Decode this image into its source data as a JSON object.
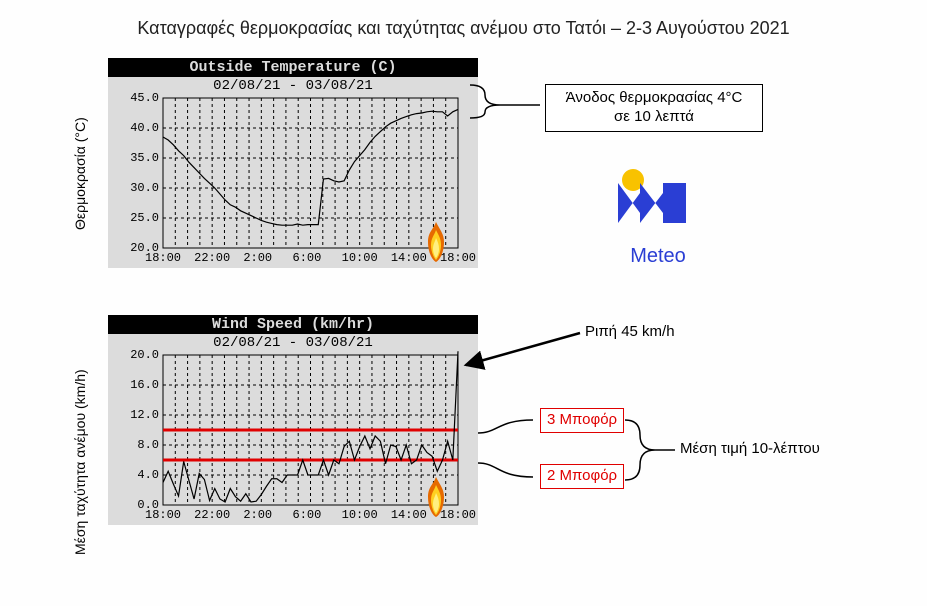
{
  "title": "Καταγραφές θερμοκρασίας και ταχύτητας ανέμου στο Τατόι – 2-3 Αυγούστου 2021",
  "top": {
    "axis_title": "Θερμοκρασία (°C)",
    "header": "Outside Temperature (C)",
    "subheader": "02/08/21 - 03/08/21",
    "panel_bg": "#dcdcdc",
    "header_bg": "#000000",
    "header_fg": "#dcdcdc",
    "grid_dash": "3,3",
    "grid_color": "#000000",
    "line_color": "#000000",
    "x_ticks": [
      "18:00",
      "22:00",
      "2:00",
      "6:00",
      "10:00",
      "14:00",
      "18:00"
    ],
    "y_ticks": [
      "20.0",
      "25.0",
      "30.0",
      "35.0",
      "40.0",
      "45.0"
    ],
    "ylim": [
      20,
      45
    ],
    "series": [
      38.5,
      38.0,
      37.2,
      36.2,
      35.4,
      34.3,
      33.4,
      32.5,
      31.6,
      30.8,
      30.0,
      29.0,
      28.0,
      27.2,
      26.8,
      26.2,
      25.8,
      25.4,
      25.0,
      24.6,
      24.3,
      24.1,
      23.9,
      23.8,
      23.8,
      23.8,
      24.0,
      23.8,
      23.9,
      23.9,
      23.9,
      31.5,
      31.6,
      31.2,
      31.0,
      31.2,
      33.0,
      34.4,
      35.4,
      36.4,
      37.6,
      38.6,
      39.4,
      40.2,
      40.8,
      41.2,
      41.6,
      41.9,
      42.2,
      42.4,
      42.5,
      42.7,
      42.8,
      42.7,
      42.7,
      42.0,
      42.7,
      43.1
    ],
    "annotation": {
      "line1": "Άνοδος θερμοκρασίας 4°C",
      "line2": "σε 10 λεπτά"
    }
  },
  "bottom": {
    "axis_title": "Μέση ταχύτητα ανέμου (km/h)",
    "header": "Wind Speed (km/hr)",
    "subheader": "02/08/21 - 03/08/21",
    "panel_bg": "#dcdcdc",
    "header_bg": "#000000",
    "header_fg": "#dcdcdc",
    "grid_dash": "3,3",
    "grid_color": "#000000",
    "line_color": "#000000",
    "hline_color": "#e00000",
    "hline_width": 3,
    "hline_values": [
      10,
      6
    ],
    "x_ticks": [
      "18:00",
      "22:00",
      "2:00",
      "6:00",
      "10:00",
      "14:00",
      "18:00"
    ],
    "y_ticks": [
      "0.0",
      "4.0",
      "8.0",
      "12.0",
      "16.0",
      "20.0"
    ],
    "ylim": [
      0,
      20
    ],
    "series": [
      3.0,
      4.5,
      2.8,
      1.2,
      5.8,
      3.3,
      0.8,
      4.2,
      3.4,
      0.6,
      2.2,
      0.8,
      0.4,
      2.2,
      1.1,
      0.5,
      1.5,
      0.4,
      0.5,
      1.4,
      2.5,
      3.5,
      3.5,
      3.0,
      4.0,
      4.0,
      4.0,
      6.0,
      4.0,
      4.0,
      4.0,
      6.0,
      4.0,
      6.0,
      5.5,
      7.8,
      8.5,
      6.0,
      7.8,
      9.2,
      7.5,
      9.2,
      8.5,
      5.5,
      8.0,
      7.8,
      6.0,
      8.0,
      5.5,
      6.0,
      8.0,
      7.0,
      6.5,
      4.5,
      6.0,
      8.5,
      6.0,
      20.5
    ],
    "bf3_label": "3 Μποφόρ",
    "bf2_label": "2 Μποφόρ",
    "gust_label": "Ριπή 45 km/h",
    "avg_label": "Μέση τιμή 10-λέπτου"
  },
  "logo": {
    "label": "Meteo",
    "blue": "#2a3ed4",
    "yellow": "#f8c200"
  }
}
